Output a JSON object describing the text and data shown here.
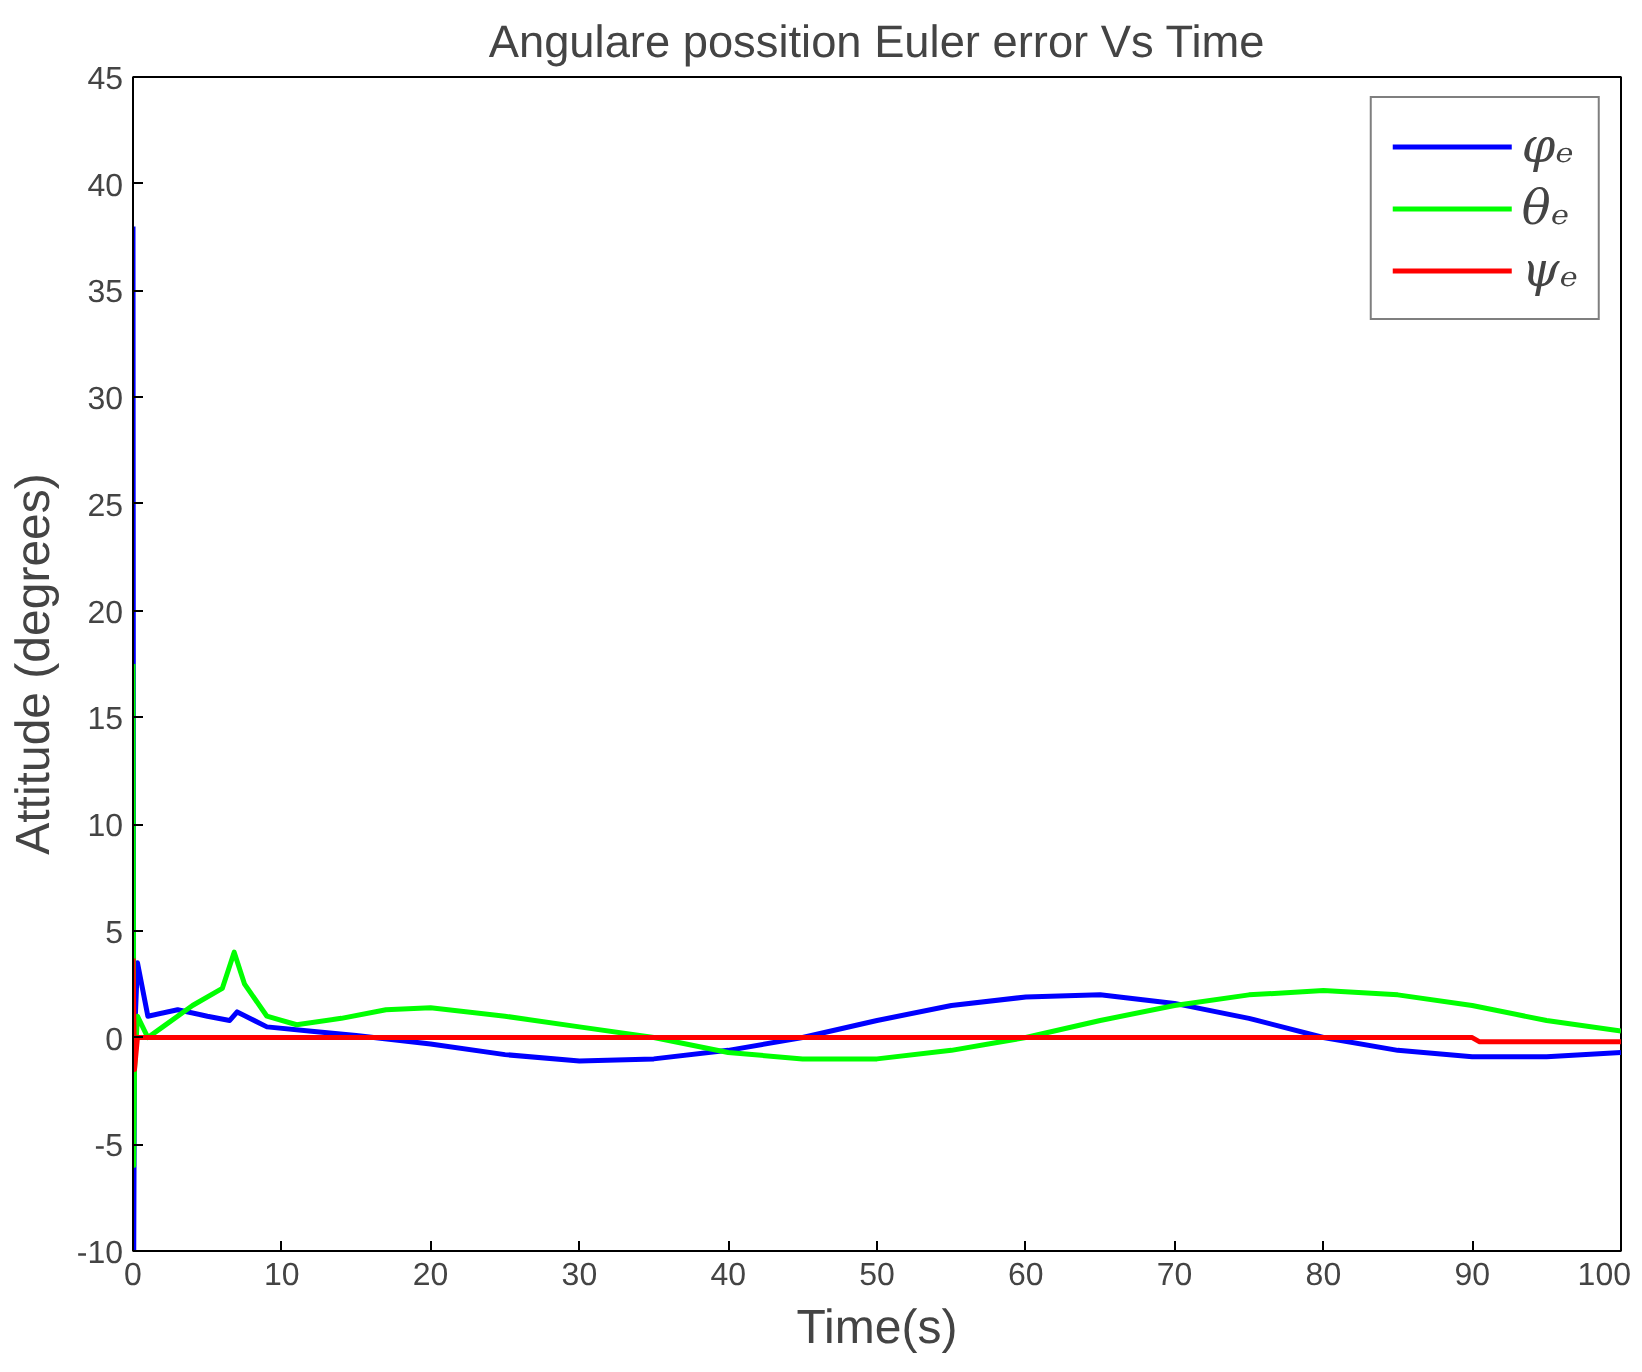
{
  "chart_data": {
    "type": "line",
    "title": "Angulare possition Euler error Vs Time",
    "xlabel": "Time(s)",
    "ylabel": "Attitude (degrees)",
    "xlim": [
      0,
      100
    ],
    "ylim": [
      -10,
      45
    ],
    "xticks": [
      0,
      10,
      20,
      30,
      40,
      50,
      60,
      70,
      80,
      90,
      100
    ],
    "yticks": [
      -10,
      -5,
      0,
      5,
      10,
      15,
      20,
      25,
      30,
      35,
      40,
      45
    ],
    "grid": false,
    "legend": "top right",
    "line_style": "solid",
    "marker": "none",
    "series": [
      {
        "name": "φₑ",
        "color": "#0000ff",
        "x": [
          0,
          0.05,
          0.1,
          0.3,
          1,
          3,
          5,
          6.5,
          7,
          9,
          12,
          15,
          20,
          25,
          30,
          35,
          40,
          45,
          50,
          55,
          60,
          65,
          70,
          75,
          80,
          85,
          90,
          95,
          100
        ],
        "values": [
          38,
          -10,
          null,
          3.5,
          1,
          1.3,
          1,
          0.8,
          1.2,
          0.5,
          0.3,
          0.1,
          -0.3,
          -0.8,
          -1.1,
          -1,
          -0.6,
          0,
          0.8,
          1.5,
          1.9,
          2,
          1.6,
          0.9,
          0,
          -0.6,
          -0.9,
          -0.9,
          -0.7
        ]
      },
      {
        "name": "θₑ",
        "color": "#00ff00",
        "x": [
          0,
          0.05,
          0.1,
          0.3,
          1,
          2,
          4,
          6,
          6.8,
          7.5,
          9,
          11,
          14,
          17,
          20,
          25,
          30,
          35,
          40,
          45,
          50,
          55,
          60,
          65,
          70,
          75,
          80,
          85,
          90,
          95,
          100
        ],
        "values": [
          17.5,
          -6,
          -1.5,
          1,
          0,
          0.5,
          1.5,
          2.3,
          4,
          2.5,
          1,
          0.6,
          0.9,
          1.3,
          1.4,
          1,
          0.5,
          0,
          -0.7,
          -1,
          -1,
          -0.6,
          0,
          0.8,
          1.5,
          2,
          2.2,
          2,
          1.5,
          0.8,
          0.3
        ]
      },
      {
        "name": "ψₑ",
        "color": "#ff0000",
        "x": [
          0,
          0.1,
          0.3,
          1,
          90,
          90.5,
          100
        ],
        "values": [
          3.7,
          -1.5,
          0,
          0,
          0,
          -0.2,
          -0.2
        ]
      }
    ]
  }
}
